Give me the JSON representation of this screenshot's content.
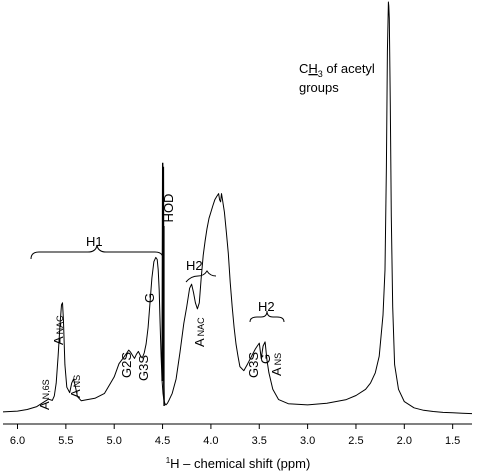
{
  "chart_data": {
    "type": "line",
    "xlabel_sup": "1",
    "xlabel_main": "H – chemical shift (ppm)",
    "xlim": [
      6.15,
      1.3
    ],
    "x_reversed": true,
    "x_ticks": [
      "6.0",
      "5.5",
      "5.0",
      "4.5",
      "4.0",
      "3.5",
      "3.0",
      "2.5",
      "2.0",
      "1.5"
    ],
    "y_axis_shown": false,
    "series": [
      {
        "x": [
          6.15,
          6.0,
          5.9,
          5.8,
          5.72,
          5.68,
          5.64,
          5.62,
          5.6,
          5.58,
          5.56,
          5.545,
          5.535,
          5.525,
          5.51,
          5.49,
          5.46,
          5.44,
          5.42,
          5.4,
          5.38,
          5.34,
          5.3,
          5.2,
          5.1,
          5.0,
          4.95,
          4.9,
          4.87,
          4.85,
          4.83,
          4.81,
          4.79,
          4.77,
          4.75,
          4.73,
          4.71,
          4.69,
          4.67,
          4.65,
          4.63,
          4.61,
          4.59,
          4.57,
          4.555,
          4.545,
          4.535,
          4.525,
          4.515,
          4.505,
          4.495,
          4.485,
          4.475,
          4.465,
          4.45,
          4.43,
          4.4,
          4.36,
          4.32,
          4.28,
          4.25,
          4.22,
          4.2,
          4.18,
          4.16,
          4.14,
          4.12,
          4.1,
          4.08,
          4.06,
          4.04,
          4.02,
          4.0,
          3.98,
          3.96,
          3.94,
          3.92,
          3.91,
          3.9,
          3.89,
          3.88,
          3.86,
          3.84,
          3.82,
          3.8,
          3.78,
          3.76,
          3.74,
          3.72,
          3.7,
          3.66,
          3.62,
          3.58,
          3.54,
          3.52,
          3.5,
          3.48,
          3.46,
          3.44,
          3.42,
          3.4,
          3.36,
          3.3,
          3.2,
          3.0,
          2.8,
          2.6,
          2.5,
          2.4,
          2.35,
          2.3,
          2.26,
          2.22,
          2.2,
          2.185,
          2.175,
          2.165,
          2.16,
          2.155,
          2.145,
          2.135,
          2.12,
          2.1,
          2.06,
          2.0,
          1.9,
          1.8,
          1.7,
          1.6,
          1.5,
          1.4,
          1.3
        ],
        "y": [
          0.5,
          0.7,
          1.1,
          1.8,
          3.0,
          3.6,
          3.3,
          4.4,
          7.5,
          14,
          22,
          26.5,
          27,
          23,
          12,
          6.5,
          5.2,
          7.5,
          8.5,
          6.5,
          4.2,
          3.2,
          3.4,
          3.8,
          5,
          9,
          12.2,
          13.8,
          14.8,
          15.5,
          15,
          14.2,
          13.5,
          14.5,
          15.2,
          14.2,
          13.6,
          14.8,
          17,
          21,
          27,
          33,
          37,
          38,
          37.5,
          35,
          30,
          22,
          14,
          8,
          5,
          3.2,
          2.5,
          2.2,
          2.6,
          3.5,
          5,
          8.5,
          15,
          22,
          26,
          30.5,
          31.5,
          29.5,
          27,
          25.5,
          27,
          33,
          38.5,
          42,
          45,
          47.5,
          49,
          50.5,
          52,
          52.8,
          53.5,
          52,
          51.5,
          53.5,
          52,
          49,
          44,
          39,
          32,
          26,
          21,
          17,
          14,
          11.5,
          10.5,
          12.2,
          14,
          15.8,
          16.5,
          17.2,
          13.5,
          16.5,
          17.5,
          13,
          10,
          6,
          3.5,
          2.5,
          2.2,
          2.6,
          3.5,
          4.5,
          6,
          7.5,
          10,
          14,
          24,
          35,
          60,
          88,
          100,
          99,
          96,
          75,
          48,
          26,
          12,
          6,
          3,
          1.5,
          0.9,
          0.6,
          0.4,
          0.3,
          0.2,
          0.1
        ]
      }
    ],
    "hod_spike": {
      "x": [
        4.505,
        4.4985,
        4.495,
        4.4915,
        4.487,
        4.483
      ],
      "y": [
        8,
        61,
        8,
        60,
        7,
        2
      ]
    },
    "annotations": {
      "ch3_prefix": "C",
      "ch3_h": "H",
      "ch3_sub": "3",
      "ch3_rest": " of acetyl",
      "ch3_line2": "groups",
      "hod": "HOD",
      "h1": "H1",
      "h2_left": "H2",
      "h2_right": "H2",
      "a_n6s_main": "A",
      "a_n6s_sub": "N,6S",
      "a_nac_main": "A",
      "a_nac_sub": "NAC",
      "a_ns_main": "A",
      "a_ns_sub": "NS",
      "g2s": "G2S",
      "g3s_left": "G3S",
      "g_left": "G",
      "a_nac2_main": "A",
      "a_nac2_sub": "NAC",
      "g3s_right": "G3S",
      "g_right": "G",
      "a_ns2_main": "A",
      "a_ns2_sub": "NS"
    }
  }
}
